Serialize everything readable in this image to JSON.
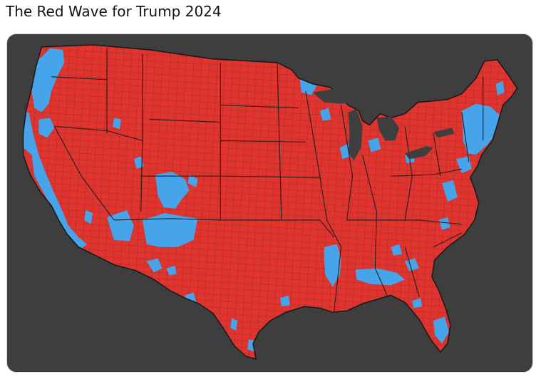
{
  "post": {
    "title": "The Red Wave for Trump 2024"
  },
  "map": {
    "subject": "us-county-election-map",
    "colors": {
      "background": "#3e3e3e",
      "republican": "#e0342f",
      "democrat": "#46a4ea",
      "border": "#1e1e1e"
    }
  }
}
